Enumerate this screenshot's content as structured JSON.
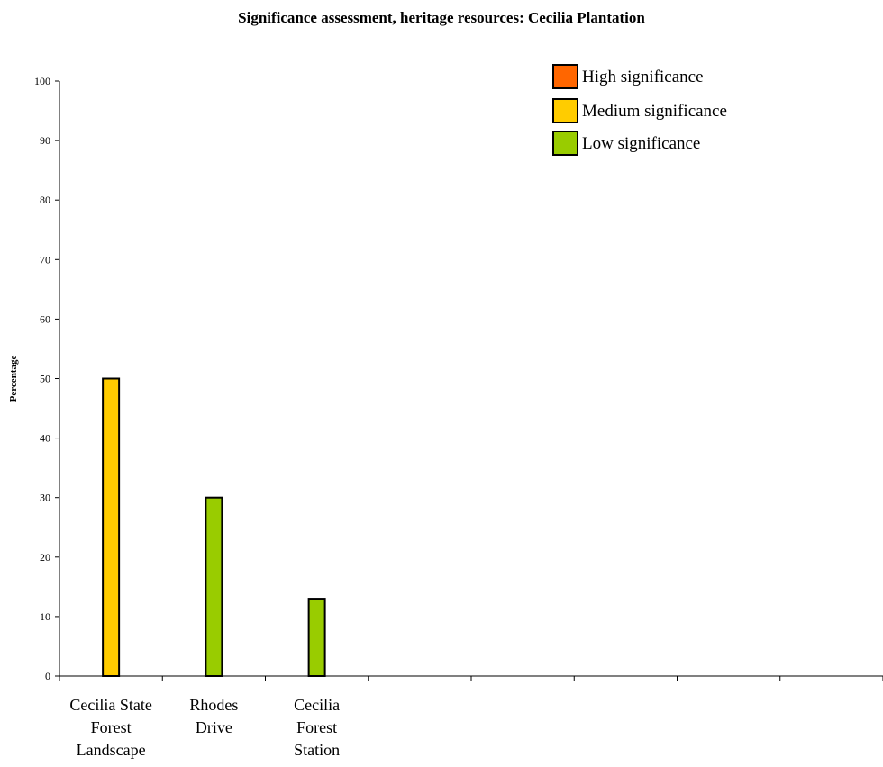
{
  "chart_data": {
    "type": "bar",
    "title": "Significance assessment, heritage resources: Cecilia Plantation",
    "xlabel": "",
    "ylabel": "Percentage",
    "ylim": [
      0,
      100
    ],
    "yticks": [
      0,
      10,
      20,
      30,
      40,
      50,
      60,
      70,
      80,
      90,
      100
    ],
    "category_slots": 8,
    "categories": [
      [
        "Cecilia State",
        "Forest",
        "Landscape"
      ],
      [
        "Rhodes",
        "Drive"
      ],
      [
        "Cecilia",
        "Forest",
        "Station"
      ]
    ],
    "bars": [
      {
        "category": 0,
        "value": 50,
        "significance": "medium"
      },
      {
        "category": 1,
        "value": 30,
        "significance": "low"
      },
      {
        "category": 2,
        "value": 13,
        "significance": "low"
      }
    ],
    "legend": {
      "position": "top-right",
      "entries": [
        {
          "key": "high",
          "label": "High significance",
          "color": "#ff6600"
        },
        {
          "key": "medium",
          "label": "Medium significance",
          "color": "#ffcc00"
        },
        {
          "key": "low",
          "label": "Low significance",
          "color": "#99cc00"
        }
      ]
    },
    "grid": false
  }
}
